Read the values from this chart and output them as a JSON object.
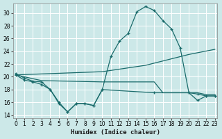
{
  "xlabel": "Humidex (Indice chaleur)",
  "bg_color": "#cce8e8",
  "grid_color": "#ffffff",
  "line_color": "#1a6b6b",
  "x_ticks": [
    0,
    1,
    2,
    3,
    4,
    5,
    6,
    7,
    8,
    9,
    10,
    11,
    12,
    13,
    14,
    15,
    16,
    17,
    18,
    19,
    20,
    21,
    22,
    23
  ],
  "y_ticks": [
    14,
    16,
    18,
    20,
    22,
    24,
    26,
    28,
    30
  ],
  "xlim": [
    -0.3,
    23.3
  ],
  "ylim": [
    13.5,
    31.5
  ],
  "series": [
    {
      "x": [
        0,
        1,
        2,
        3,
        4,
        5,
        6,
        7,
        8,
        9,
        10,
        11,
        12,
        13,
        14,
        15,
        16,
        17,
        18,
        19,
        20,
        21,
        22,
        23
      ],
      "y": [
        20.5,
        19.8,
        19.3,
        19.2,
        18.0,
        15.8,
        14.5,
        15.8,
        15.8,
        15.5,
        18.0,
        23.2,
        25.6,
        26.8,
        30.2,
        31.0,
        30.4,
        28.8,
        27.5,
        24.5,
        17.5,
        16.3,
        17.0,
        17.0
      ],
      "marker": true
    },
    {
      "x": [
        0,
        10,
        15,
        20,
        23
      ],
      "y": [
        20.3,
        20.8,
        21.8,
        23.5,
        24.3
      ],
      "marker": false
    },
    {
      "x": [
        0,
        3,
        10,
        16,
        17,
        20,
        21,
        22,
        23
      ],
      "y": [
        20.3,
        19.4,
        19.2,
        19.2,
        17.5,
        17.5,
        17.5,
        17.2,
        17.2
      ],
      "marker": false
    },
    {
      "x": [
        0,
        1,
        2,
        3,
        4,
        5,
        6,
        7,
        8,
        9,
        10,
        16,
        20,
        21,
        22,
        23
      ],
      "y": [
        20.3,
        19.5,
        19.2,
        18.8,
        18.0,
        16.0,
        14.5,
        15.8,
        15.8,
        15.5,
        18.0,
        17.5,
        17.5,
        17.3,
        17.0,
        17.0
      ],
      "marker": true
    }
  ]
}
